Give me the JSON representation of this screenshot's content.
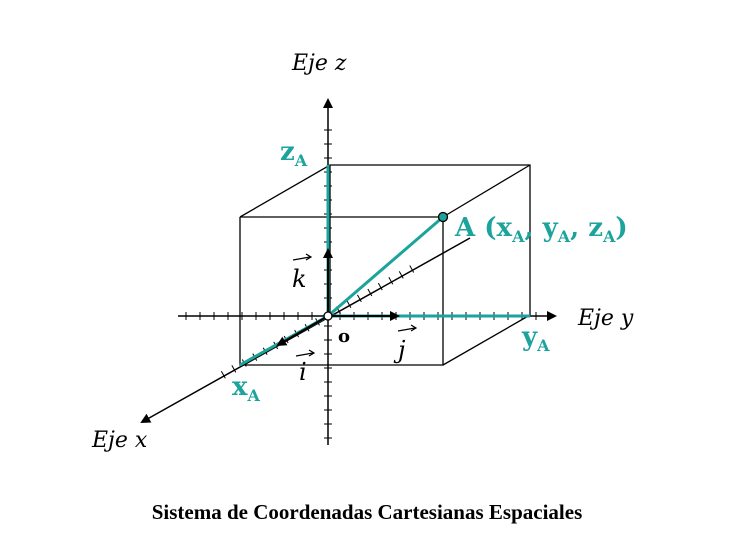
{
  "axes": {
    "x_label": "Eje x",
    "y_label": "Eje y",
    "z_label": "Eje z"
  },
  "origin_label": "o",
  "unit_vectors": {
    "i": "i",
    "j": "j",
    "k": "k"
  },
  "point": {
    "name": "A",
    "coords": [
      "x",
      "y",
      "z"
    ],
    "subscript": "A"
  },
  "projections": {
    "x": "x",
    "y": "y",
    "z": "z",
    "subscript": "A"
  },
  "caption": "Sistema de Coordenadas Cartesianas Espaciales",
  "colors": {
    "accent": "#1ba39c",
    "ink": "#000000"
  }
}
